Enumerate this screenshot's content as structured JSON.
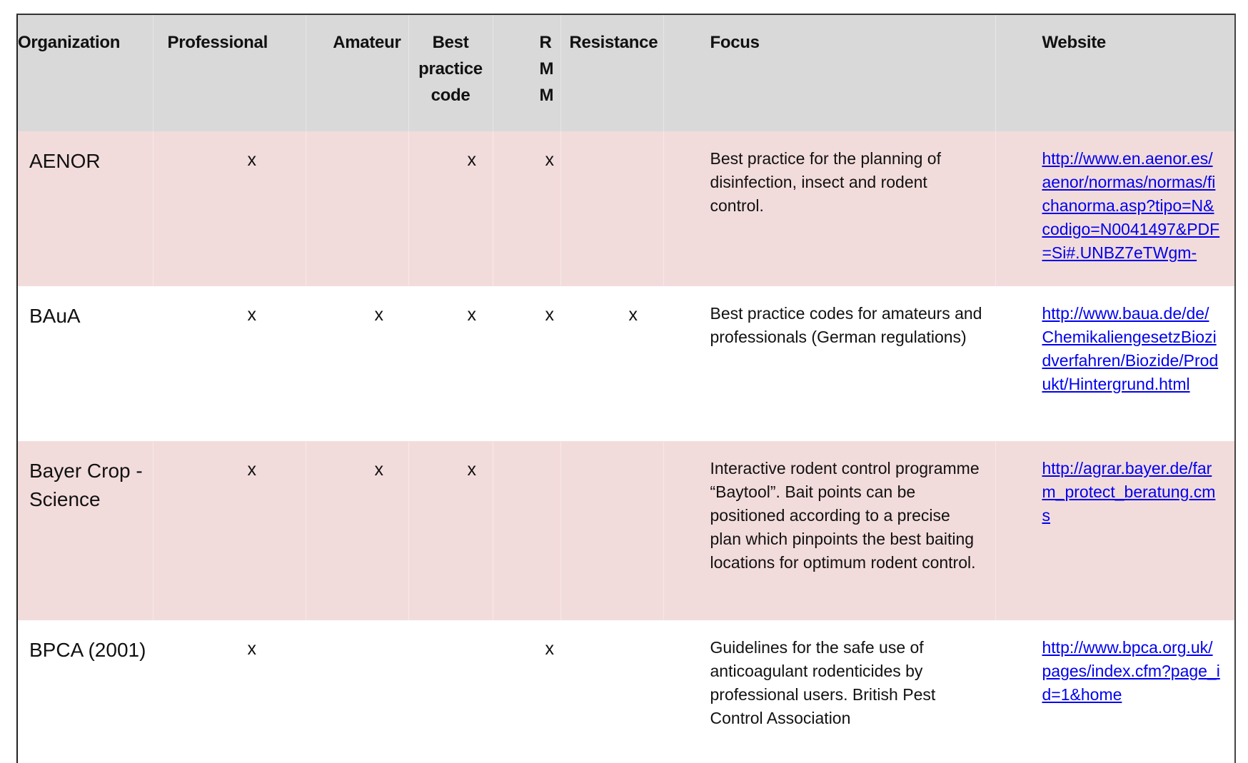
{
  "columns": [
    "Organization",
    "Professional",
    "Amateur",
    "Best practice code",
    "R M M",
    "Resistance",
    "Focus",
    "Website"
  ],
  "header": {
    "organization": "Organization",
    "professional": "Professional",
    "amateur": "Amateur",
    "best_practice_code": "Best practice code",
    "rmm": "R M M",
    "resistance": "Resistance",
    "focus": "Focus",
    "website": "Website"
  },
  "rows": [
    {
      "organization": "AENOR",
      "professional": "x",
      "amateur": "",
      "best_practice_code": "x",
      "rmm": "x",
      "resistance": "",
      "focus": "Best practice for the planning of disinfection, insect and rodent control.",
      "website": "http://www.en.aenor.es/aenor/normas/normas/fichanorma.asp?tipo=N&codigo=N0041497&PDF=Si#.UNBZ7eTWgm-"
    },
    {
      "organization": "BAuA",
      "professional": "x",
      "amateur": "x",
      "best_practice_code": "x",
      "rmm": "x",
      "resistance": "x",
      "focus": "Best practice codes for amateurs and professionals (German regulations)",
      "website": "http://www.baua.de/de/ChemikaliengesetzBiozidverfahren/Biozide/Produkt/Hintergrund.html"
    },
    {
      "organization": "Bayer Crop -Science",
      "professional": "x",
      "amateur": "x",
      "best_practice_code": "x",
      "rmm": "",
      "resistance": "",
      "focus": "Interactive rodent control programme “Baytool”.  Bait points can be positioned according to a precise plan which pinpoints the best baiting locations for optimum rodent control.",
      "website": "http://agrar.bayer.de/farm_protect_beratung.cms"
    },
    {
      "organization": "BPCA (2001)",
      "professional": "x",
      "amateur": "",
      "best_practice_code": "",
      "rmm": "x",
      "resistance": "",
      "focus": "Guidelines for the safe use of anticoagulant rodenticides by professional users. British Pest Control Association",
      "website": "http://www.bpca.org.uk/pages/index.cfm?page_id=1&home"
    }
  ],
  "colors": {
    "header_bg": "#d9d9d9",
    "row_shaded_bg": "#f2dcdb",
    "link": "#0000ee",
    "highlight": "#f3e2ae"
  }
}
